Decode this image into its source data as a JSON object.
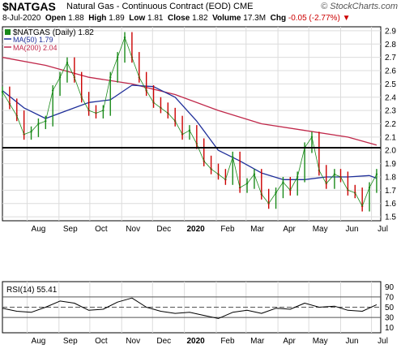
{
  "header": {
    "symbol": "$NATGAS",
    "contract": "Natural Gas - Continuous Contract (EOD)",
    "exchange": "CME",
    "source": "© StockCharts.com",
    "date": "8-Jul-2020",
    "open_label": "Open",
    "open": "1.88",
    "high_label": "High",
    "high": "1.89",
    "low_label": "Low",
    "low": "1.81",
    "close_label": "Close",
    "close": "1.82",
    "volume_label": "Volume",
    "volume": "17.3M",
    "chg_label": "Chg",
    "chg": "-0.05 (-2.77%)"
  },
  "legend": {
    "price": "$NATGAS (Daily) 1.82",
    "ma50": "MA(50) 1.79",
    "ma200": "MA(200) 2.04",
    "rsi": "RSI(14) 55.41"
  },
  "colors": {
    "price": "#1a8a1a",
    "price_down": "#cc0000",
    "ma50": "#1f2f9a",
    "ma200": "#c0284a",
    "hline": "#000000",
    "grid": "#dcdcdc",
    "rsi": "#000000"
  },
  "chart_data": [
    {
      "type": "line",
      "title": "$NATGAS (Daily) 1.82",
      "x_ticks": [
        "Aug",
        "Sep",
        "Oct",
        "Nov",
        "Dec",
        "2020",
        "Feb",
        "Mar",
        "Apr",
        "May",
        "Jun",
        "Jul"
      ],
      "y_ticks": [
        "1.5",
        "1.6",
        "1.7",
        "1.8",
        "1.9",
        "2.0",
        "2.1",
        "2.2",
        "2.3",
        "2.4",
        "2.5",
        "2.6",
        "2.7",
        "2.8",
        "2.9"
      ],
      "ylim": [
        1.47,
        2.93
      ],
      "xlim": [
        "2019-07-08",
        "2020-07-10"
      ],
      "horizontal_line": 2.02,
      "series": [
        {
          "name": "$NATGAS",
          "x": [
            "2019-07-08",
            "2019-07-15",
            "2019-07-22",
            "2019-07-29",
            "2019-08-05",
            "2019-08-12",
            "2019-08-19",
            "2019-08-26",
            "2019-09-02",
            "2019-09-09",
            "2019-09-16",
            "2019-09-23",
            "2019-09-30",
            "2019-10-07",
            "2019-10-14",
            "2019-10-21",
            "2019-10-28",
            "2019-11-04",
            "2019-11-11",
            "2019-11-18",
            "2019-11-25",
            "2019-12-02",
            "2019-12-09",
            "2019-12-16",
            "2019-12-23",
            "2019-12-30",
            "2020-01-06",
            "2020-01-13",
            "2020-01-20",
            "2020-01-27",
            "2020-02-03",
            "2020-02-10",
            "2020-02-17",
            "2020-02-24",
            "2020-03-02",
            "2020-03-09",
            "2020-03-16",
            "2020-03-23",
            "2020-03-30",
            "2020-04-06",
            "2020-04-13",
            "2020-04-20",
            "2020-04-27",
            "2020-05-04",
            "2020-05-11",
            "2020-05-18",
            "2020-05-26",
            "2020-06-01",
            "2020-06-08",
            "2020-06-15",
            "2020-06-22",
            "2020-06-29",
            "2020-07-06"
          ],
          "values": [
            2.44,
            2.35,
            2.26,
            2.12,
            2.14,
            2.2,
            2.22,
            2.45,
            2.55,
            2.66,
            2.55,
            2.4,
            2.3,
            2.28,
            2.3,
            2.55,
            2.7,
            2.85,
            2.7,
            2.55,
            2.45,
            2.36,
            2.32,
            2.28,
            2.22,
            2.12,
            2.15,
            2.05,
            1.92,
            1.86,
            1.82,
            1.78,
            1.95,
            1.72,
            1.75,
            1.82,
            1.67,
            1.6,
            1.68,
            1.76,
            1.7,
            1.8,
            2.02,
            2.1,
            1.85,
            1.75,
            1.82,
            1.8,
            1.7,
            1.68,
            1.58,
            1.72,
            1.82
          ]
        },
        {
          "name": "MA(50)",
          "x": [
            "2019-07-08",
            "2019-07-29",
            "2019-08-19",
            "2019-09-09",
            "2019-09-30",
            "2019-10-21",
            "2019-11-11",
            "2019-12-02",
            "2019-12-23",
            "2020-01-13",
            "2020-02-03",
            "2020-02-24",
            "2020-03-16",
            "2020-04-06",
            "2020-04-27",
            "2020-05-18",
            "2020-06-08",
            "2020-06-29",
            "2020-07-06"
          ],
          "values": [
            2.45,
            2.32,
            2.24,
            2.3,
            2.36,
            2.38,
            2.49,
            2.48,
            2.4,
            2.22,
            2.0,
            1.92,
            1.83,
            1.78,
            1.78,
            1.8,
            1.8,
            1.81,
            1.79
          ]
        },
        {
          "name": "MA(200)",
          "x": [
            "2019-07-08",
            "2019-08-19",
            "2019-09-30",
            "2019-11-11",
            "2019-12-23",
            "2020-02-03",
            "2020-03-16",
            "2020-04-27",
            "2020-06-08",
            "2020-07-06"
          ],
          "values": [
            2.7,
            2.64,
            2.55,
            2.5,
            2.42,
            2.3,
            2.2,
            2.15,
            2.1,
            2.04
          ]
        }
      ]
    },
    {
      "type": "line",
      "title": "RSI(14) 55.41",
      "x_ticks": [
        "Aug",
        "Sep",
        "Oct",
        "Nov",
        "Dec",
        "2020",
        "Feb",
        "Mar",
        "Apr",
        "May",
        "Jun",
        "Jul"
      ],
      "y_ticks": [
        "10",
        "30",
        "50",
        "70",
        "90"
      ],
      "ylim": [
        0,
        100
      ],
      "reference_lines": [
        30,
        50,
        70
      ],
      "series": [
        {
          "name": "RSI(14)",
          "x": [
            "2019-07-08",
            "2019-07-22",
            "2019-08-05",
            "2019-08-19",
            "2019-09-02",
            "2019-09-16",
            "2019-09-30",
            "2019-10-14",
            "2019-10-28",
            "2019-11-11",
            "2019-11-25",
            "2019-12-09",
            "2019-12-23",
            "2020-01-06",
            "2020-01-20",
            "2020-02-03",
            "2020-02-17",
            "2020-03-02",
            "2020-03-16",
            "2020-03-30",
            "2020-04-13",
            "2020-04-27",
            "2020-05-11",
            "2020-05-26",
            "2020-06-08",
            "2020-06-22",
            "2020-07-06"
          ],
          "values": [
            48,
            42,
            40,
            50,
            62,
            58,
            44,
            46,
            60,
            68,
            50,
            42,
            38,
            40,
            34,
            28,
            40,
            44,
            38,
            48,
            46,
            58,
            50,
            52,
            44,
            42,
            55
          ]
        }
      ]
    }
  ]
}
